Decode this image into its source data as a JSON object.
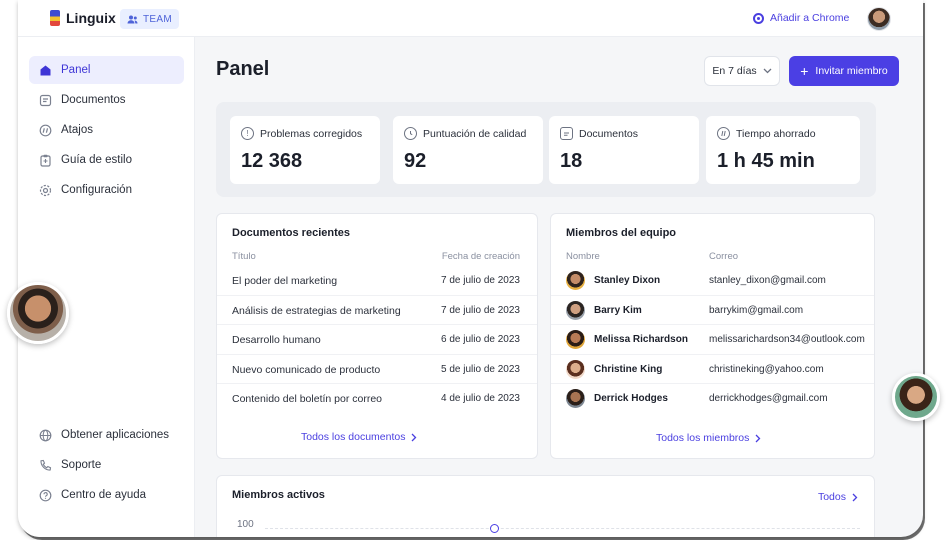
{
  "app": {
    "name": "Linguix",
    "badge": "TEAM",
    "chrome_link": "Añadir a Chrome"
  },
  "sidebar": {
    "items": [
      {
        "label": "Panel",
        "icon": "home-icon",
        "active": true
      },
      {
        "label": "Documentos",
        "icon": "document-icon",
        "active": false
      },
      {
        "label": "Atajos",
        "icon": "shortcut-icon",
        "active": false
      },
      {
        "label": "Guía de estilo",
        "icon": "clipboard-icon",
        "active": false
      },
      {
        "label": "Configuración",
        "icon": "gear-icon",
        "active": false
      }
    ],
    "bottom_items": [
      {
        "label": "Obtener aplicaciones",
        "icon": "globe-icon"
      },
      {
        "label": "Soporte",
        "icon": "phone-icon"
      },
      {
        "label": "Centro de ayuda",
        "icon": "help-icon"
      }
    ]
  },
  "header": {
    "title": "Panel",
    "range": "En 7 días",
    "invite_label": "Invitar miembro"
  },
  "stats": [
    {
      "label": "Problemas corregidos",
      "value": "12 368",
      "icon": "alert-icon"
    },
    {
      "label": "Puntuación de calidad",
      "value": "92",
      "icon": "clock-icon"
    },
    {
      "label": "Documentos",
      "value": "18",
      "icon": "document-icon"
    },
    {
      "label": "Tiempo ahorrado",
      "value": "1 h 45 min",
      "icon": "shortcut-icon"
    }
  ],
  "recent_docs": {
    "title": "Documentos recientes",
    "col_title": "Título",
    "col_date": "Fecha de creación",
    "rows": [
      {
        "title": "El poder del marketing",
        "date": "7 de julio de 2023"
      },
      {
        "title": "Análisis de estrategias de marketing",
        "date": "7 de julio de 2023"
      },
      {
        "title": "Desarrollo humano",
        "date": "6 de julio de 2023"
      },
      {
        "title": "Nuevo comunicado de producto",
        "date": "5 de julio de 2023"
      },
      {
        "title": "Contenido del boletín por correo",
        "date": "4 de julio de 2023"
      }
    ],
    "link": "Todos los documentos"
  },
  "team": {
    "title": "Miembros del equipo",
    "col_name": "Nombre",
    "col_email": "Correo",
    "members": [
      {
        "name": "Stanley Dixon",
        "email": "stanley_dixon@gmail.com"
      },
      {
        "name": "Barry Kim",
        "email": "barrykim@gmail.com"
      },
      {
        "name": "Melissa Richardson",
        "email": "melissarichardson34@outlook.com"
      },
      {
        "name": "Christine King",
        "email": "christineking@yahoo.com"
      },
      {
        "name": "Derrick Hodges",
        "email": "derrickhodges@gmail.com"
      }
    ],
    "link": "Todos los miembros"
  },
  "active_members": {
    "title": "Miembros activos",
    "link": "Todos",
    "y_tick": "100"
  },
  "colors": {
    "accent": "#4b3fe4",
    "active_bg": "#edeefe"
  }
}
